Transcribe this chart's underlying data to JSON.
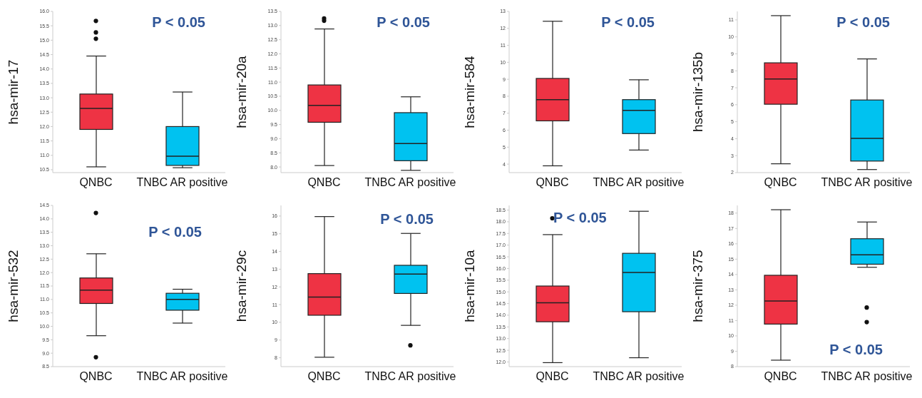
{
  "chart_data": [
    {
      "type": "box",
      "ylabel": "hsa-mir-17",
      "categories": [
        "QNBC",
        "TNBC AR positive"
      ],
      "colors": [
        "#ee3344",
        "#00c2f0"
      ],
      "boxes": [
        {
          "low": 10.6,
          "q1": 11.9,
          "median": 12.63,
          "q3": 13.13,
          "high": 14.45,
          "outliers": [
            15.05,
            15.27,
            15.67
          ]
        },
        {
          "low": 10.57,
          "q1": 10.65,
          "median": 10.97,
          "q3": 12.0,
          "high": 13.2
        }
      ],
      "ylim": [
        10.4,
        16
      ],
      "yticks": [
        10.5,
        {
          "value": 11,
          "label": "11.0"
        },
        11.5,
        {
          "value": 12,
          "label": "12.0"
        },
        12.5,
        {
          "value": 13,
          "label": "13.0"
        },
        13.5,
        {
          "value": 14,
          "label": "14.0"
        },
        14.5,
        {
          "value": 15,
          "label": "15.0"
        },
        15.5,
        {
          "value": 16,
          "label": "16.0"
        }
      ],
      "annotations": [
        "P < 0.05"
      ]
    },
    {
      "type": "box",
      "ylabel": "hsa-mir-20a",
      "categories": [
        "QNBC",
        "TNBC AR positive"
      ],
      "colors": [
        "#ee3344",
        "#00c2f0"
      ],
      "boxes": [
        {
          "low": 8.05,
          "q1": 9.58,
          "median": 10.18,
          "q3": 10.9,
          "high": 12.88,
          "outliers": [
            13.17,
            13.25
          ]
        },
        {
          "low": 7.88,
          "q1": 8.22,
          "median": 8.83,
          "q3": 9.92,
          "high": 10.48
        }
      ],
      "ylim": [
        7.8,
        13.5
      ],
      "yticks": [
        {
          "value": 8,
          "label": "8.0"
        },
        8.5,
        {
          "value": 9,
          "label": "9.0"
        },
        9.5,
        {
          "value": 10,
          "label": "10.0"
        },
        10.5,
        {
          "value": 11,
          "label": "11.0"
        },
        11.5,
        {
          "value": 12,
          "label": "12.0"
        },
        12.5,
        {
          "value": 13,
          "label": "13.0"
        },
        13.5
      ],
      "annotations": [
        "P < 0.05"
      ]
    },
    {
      "type": "box",
      "ylabel": "hsa-mir-584",
      "categories": [
        "QNBC",
        "TNBC AR positive"
      ],
      "colors": [
        "#ee3344",
        "#00c2f0"
      ],
      "boxes": [
        {
          "low": 3.9,
          "q1": 6.55,
          "median": 7.8,
          "q3": 9.05,
          "high": 12.42
        },
        {
          "low": 4.83,
          "q1": 5.8,
          "median": 7.17,
          "q3": 7.8,
          "high": 8.97
        }
      ],
      "ylim": [
        3.5,
        13
      ],
      "yticks": [
        4,
        5,
        6,
        7,
        8,
        9,
        10,
        11,
        12,
        13
      ],
      "annotations": [
        "P < 0.05"
      ]
    },
    {
      "type": "box",
      "ylabel": "hsa-mir-135b",
      "categories": [
        "QNBC",
        "TNBC AR positive"
      ],
      "colors": [
        "#ee3344",
        "#00c2f0"
      ],
      "boxes": [
        {
          "low": 2.52,
          "q1": 6.03,
          "median": 7.52,
          "q3": 8.47,
          "high": 11.25
        },
        {
          "low": 2.18,
          "q1": 2.68,
          "median": 4.02,
          "q3": 6.28,
          "high": 8.7
        }
      ],
      "ylim": [
        2,
        11.5
      ],
      "yticks": [
        2,
        3,
        4,
        5,
        6,
        7,
        8,
        9,
        10,
        11
      ],
      "annotations": [
        "P < 0.05"
      ]
    },
    {
      "type": "box",
      "ylabel": "hsa-mir-532",
      "categories": [
        "QNBC",
        "TNBC AR positive"
      ],
      "colors": [
        "#ee3344",
        "#00c2f0"
      ],
      "boxes": [
        {
          "low": 9.65,
          "q1": 10.85,
          "median": 11.35,
          "q3": 11.8,
          "high": 12.7,
          "outliers": [
            14.22,
            8.85
          ]
        },
        {
          "low": 10.12,
          "q1": 10.6,
          "median": 11.0,
          "q3": 11.23,
          "high": 11.38
        }
      ],
      "ylim": [
        8.5,
        14.5
      ],
      "yticks": [
        8.5,
        {
          "value": 9,
          "label": "9.0"
        },
        9.5,
        {
          "value": 10,
          "label": "10.0"
        },
        10.5,
        {
          "value": 11,
          "label": "11.0"
        },
        11.5,
        {
          "value": 12,
          "label": "12.0"
        },
        12.5,
        {
          "value": 13,
          "label": "13.0"
        },
        13.5,
        {
          "value": 14,
          "label": "14.0"
        },
        14.5
      ],
      "annotations": [
        "P < 0.05"
      ]
    },
    {
      "type": "box",
      "ylabel": "hsa-mir-29c",
      "categories": [
        "QNBC",
        "TNBC AR positive"
      ],
      "colors": [
        "#ee3344",
        "#00c2f0"
      ],
      "boxes": [
        {
          "low": 8.03,
          "q1": 10.4,
          "median": 11.43,
          "q3": 12.75,
          "high": 15.97
        },
        {
          "low": 9.83,
          "q1": 11.63,
          "median": 12.72,
          "q3": 13.22,
          "high": 15.02,
          "outliers": [
            8.7
          ]
        }
      ],
      "ylim": [
        7.5,
        16.6
      ],
      "yticks": [
        8,
        9,
        10,
        11,
        12,
        13,
        14,
        15,
        16
      ],
      "annotations": [
        "P < 0.05"
      ]
    },
    {
      "type": "box",
      "ylabel": "hsa-mir-10a",
      "categories": [
        "QNBC",
        "TNBC AR positive"
      ],
      "colors": [
        "#ee3344",
        "#00c2f0"
      ],
      "boxes": [
        {
          "low": 11.97,
          "q1": 13.72,
          "median": 14.53,
          "q3": 15.25,
          "high": 17.45,
          "outliers": [
            18.15
          ]
        },
        {
          "low": 12.18,
          "q1": 14.15,
          "median": 15.83,
          "q3": 16.65,
          "high": 18.45
        }
      ],
      "ylim": [
        11.8,
        18.7
      ],
      "yticks": [
        {
          "value": 12,
          "label": "12.0"
        },
        12.5,
        {
          "value": 13,
          "label": "13.0"
        },
        13.5,
        {
          "value": 14,
          "label": "14.0"
        },
        14.5,
        {
          "value": 15,
          "label": "15.0"
        },
        15.5,
        {
          "value": 16,
          "label": "16.0"
        },
        16.5,
        {
          "value": 17,
          "label": "17.0"
        },
        17.5,
        {
          "value": 18,
          "label": "18.0"
        },
        18.5
      ],
      "annotations": [
        "P < 0.05"
      ]
    },
    {
      "type": "box",
      "ylabel": "hsa-mir-375",
      "categories": [
        "QNBC",
        "TNBC AR positive"
      ],
      "colors": [
        "#ee3344",
        "#00c2f0"
      ],
      "boxes": [
        {
          "low": 8.42,
          "q1": 10.77,
          "median": 12.28,
          "q3": 13.95,
          "high": 18.22
        },
        {
          "low": 14.47,
          "q1": 14.67,
          "median": 15.28,
          "q3": 16.33,
          "high": 17.42,
          "outliers": [
            11.85,
            10.9
          ]
        }
      ],
      "ylim": [
        8,
        18.5
      ],
      "yticks": [
        8,
        9,
        10,
        11,
        12,
        13,
        14,
        15,
        16,
        17,
        18
      ],
      "annotations": [
        "P < 0.05"
      ]
    }
  ]
}
